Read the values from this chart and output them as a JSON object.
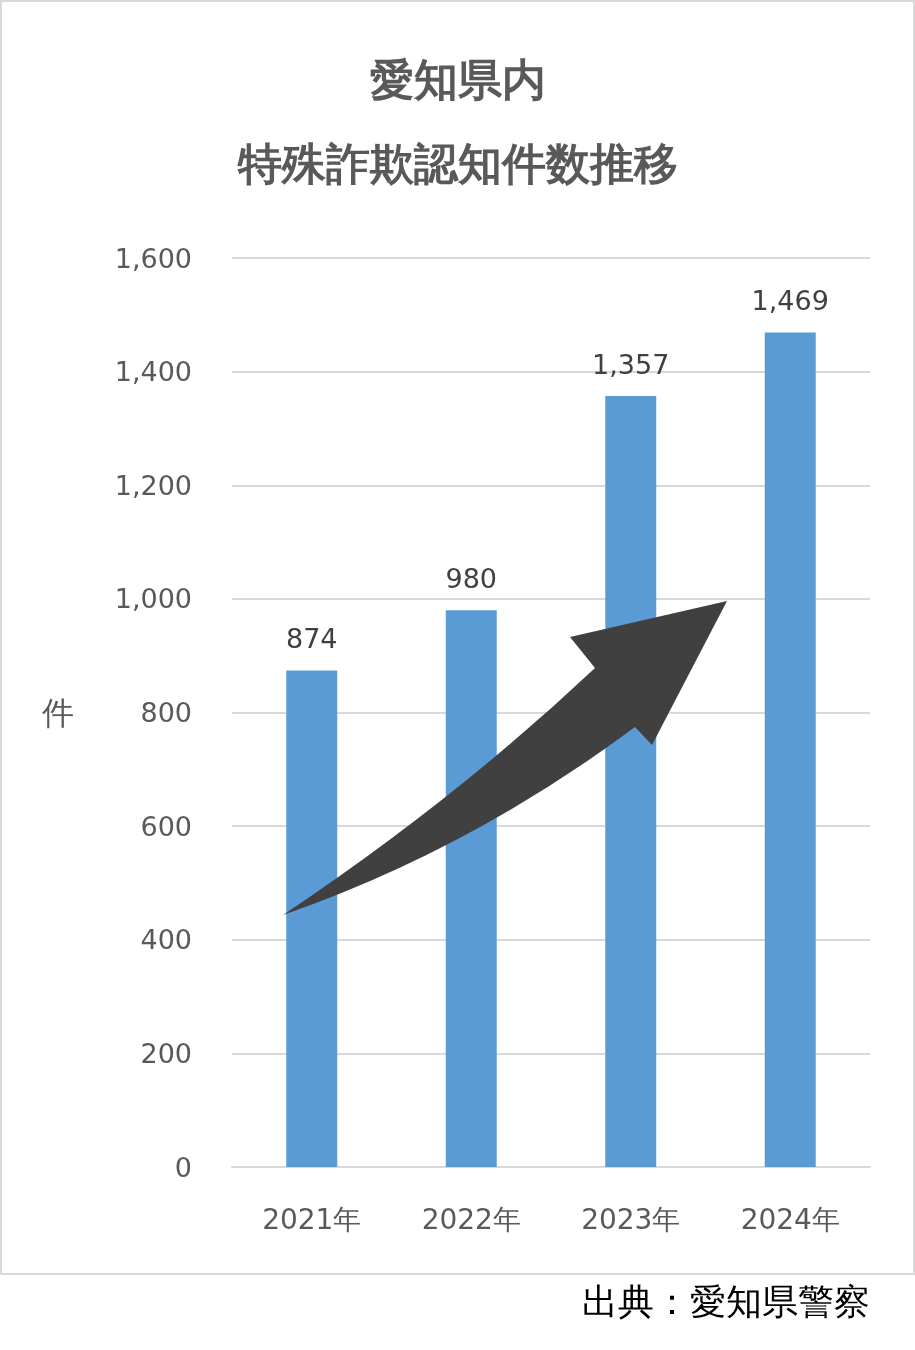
{
  "chart_data": {
    "type": "bar",
    "title": "愛知県内",
    "subtitle": "特殊詐欺認知件数推移",
    "ylabel": "件",
    "categories": [
      "2021年",
      "2022年",
      "2023年",
      "2024年"
    ],
    "values": [
      874,
      980,
      1357,
      1469
    ],
    "color": "#5b9bd5",
    "value_labels": [
      "874",
      "980",
      "1,357",
      "1,469"
    ],
    "ylim": [
      0,
      1600
    ],
    "yticks": [
      0,
      200,
      400,
      600,
      800,
      {
        "value": 1000,
        "label": "1,000"
      },
      {
        "value": 1200,
        "label": "1,200"
      },
      {
        "value": 1400,
        "label": "1,400"
      },
      {
        "value": 1600,
        "label": "1,600"
      }
    ],
    "grid": "y",
    "annotations": [
      "出典：愛知県警察"
    ]
  }
}
